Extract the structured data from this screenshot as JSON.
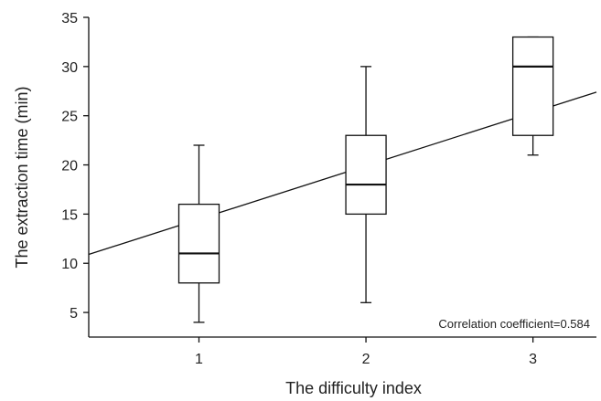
{
  "chart_data": {
    "type": "box",
    "title": "",
    "xlabel": "The difficulty index",
    "ylabel": "The extraction time (min)",
    "categories": [
      "1",
      "2",
      "3"
    ],
    "x": [
      1,
      2,
      3
    ],
    "xlim": [
      0.34,
      3.38
    ],
    "ylim": [
      2.5,
      35
    ],
    "yticks": [
      5,
      10,
      15,
      20,
      25,
      30,
      35
    ],
    "boxes": [
      {
        "category": "1",
        "min": 4,
        "q1": 8,
        "median": 11,
        "q3": 16,
        "max": 22
      },
      {
        "category": "2",
        "min": 6,
        "q1": 15,
        "median": 18,
        "q3": 23,
        "max": 30
      },
      {
        "category": "3",
        "min": 21,
        "q1": 23,
        "median": 30,
        "q3": 33,
        "max": 33
      }
    ],
    "trend_line": {
      "x": [
        0.34,
        3.38
      ],
      "y": [
        10.9,
        27.4
      ]
    },
    "annotation": "Correlation coefficient=0.584",
    "grid": false
  }
}
